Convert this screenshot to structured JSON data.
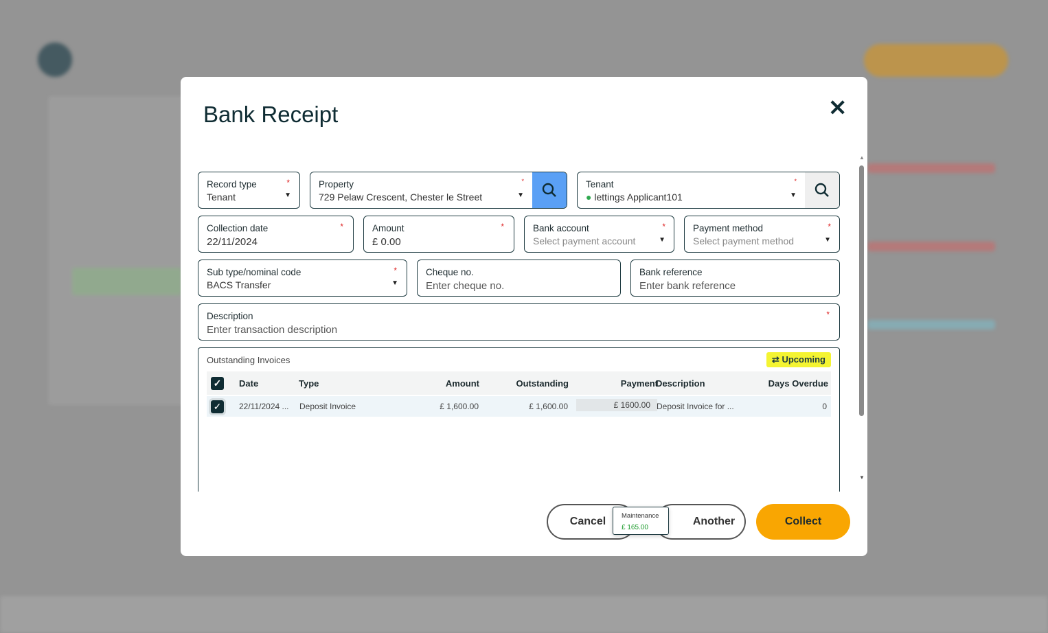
{
  "modal": {
    "title": "Bank Receipt"
  },
  "fields": {
    "record_type": {
      "label": "Record type",
      "value": "Tenant"
    },
    "property": {
      "label": "Property",
      "value": "729 Pelaw Crescent, Chester le Street"
    },
    "tenant": {
      "label": "Tenant",
      "value": "lettings Applicant101"
    },
    "collection_date": {
      "label": "Collection date",
      "value": "22/11/2024"
    },
    "amount": {
      "label": "Amount",
      "value": "£ 0.00"
    },
    "bank_account": {
      "label": "Bank account",
      "placeholder": "Select payment account"
    },
    "payment_method": {
      "label": "Payment method",
      "placeholder": "Select payment method"
    },
    "sub_type": {
      "label": "Sub type/nominal code",
      "value": "BACS Transfer"
    },
    "cheque": {
      "label": "Cheque no.",
      "placeholder": "Enter cheque no."
    },
    "bank_ref": {
      "label": "Bank reference",
      "placeholder": "Enter bank reference"
    },
    "description": {
      "label": "Description",
      "placeholder": "Enter transaction description"
    }
  },
  "required_mark": "*",
  "invoices": {
    "title": "Outstanding Invoices",
    "upcoming_label": "Upcoming",
    "columns": [
      "Date",
      "Type",
      "Amount",
      "Outstanding",
      "Payment",
      "Description",
      "Days Overdue"
    ],
    "rows": [
      {
        "date": "22/11/2024 ...",
        "type": "Deposit Invoice",
        "amount": "£ 1,600.00",
        "outstanding": "£ 1,600.00",
        "payment": "£ 1600.00",
        "description": "Deposit Invoice for ...",
        "days_overdue": "0",
        "checked": true
      }
    ]
  },
  "buttons": {
    "cancel": "Cancel",
    "another": "Another",
    "collect": "Collect"
  },
  "tooltip": {
    "label": "Maintenance",
    "value": "£ 165.00"
  },
  "colors": {
    "accent": "#f9a602",
    "search_active": "#5aa0f5",
    "highlight": "#f4f432",
    "dark": "#0f2c33"
  }
}
